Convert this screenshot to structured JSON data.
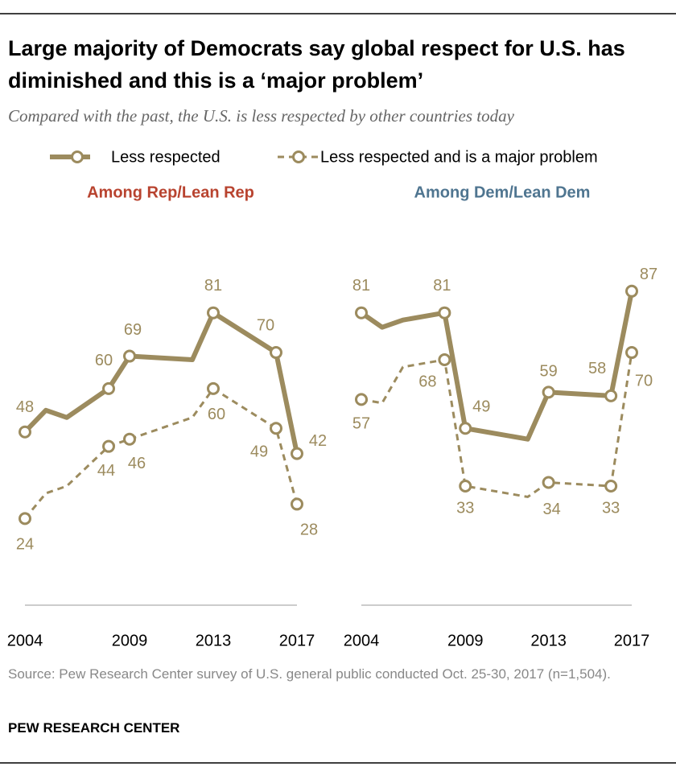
{
  "title": "Large majority of Democrats say global respect for U.S. has diminished and this is a ‘major problem’",
  "subtitle": "Compared with the past, the U.S. is less respected by other countries today",
  "source": "Source: Pew Research Center survey of U.S. general public conducted Oct. 25-30, 2017 (n=1,504).",
  "footer": "PEW RESEARCH CENTER",
  "chart_data": [
    {
      "type": "line",
      "title": "Among Rep/Lean Rep",
      "title_color": "#b8432f",
      "x": [
        2004,
        2005,
        2006,
        2008,
        2009,
        2012,
        2013,
        2016,
        2017
      ],
      "xlim": [
        2004,
        2017
      ],
      "xticks": [
        2004,
        2009,
        2013,
        2017
      ],
      "ylim": [
        0,
        100
      ],
      "series": [
        {
          "name": "Less respected",
          "color": "#9c8b5e",
          "line_style": "solid",
          "values": [
            48,
            54,
            52,
            60,
            69,
            68,
            81,
            70,
            42
          ],
          "value_labels": [
            "48",
            null,
            null,
            "60",
            "69",
            null,
            "81",
            "70",
            "42"
          ]
        },
        {
          "name": "Less respected and is a major problem",
          "color": "#9c8b5e",
          "line_style": "dashed",
          "values": [
            24,
            31,
            33,
            44,
            46,
            52,
            60,
            49,
            28
          ],
          "value_labels": [
            "24",
            null,
            null,
            "44",
            "46",
            null,
            "60",
            "49",
            "28"
          ]
        }
      ]
    },
    {
      "type": "line",
      "title": "Among Dem/Lean Dem",
      "title_color": "#4f7590",
      "x": [
        2004,
        2005,
        2006,
        2008,
        2009,
        2012,
        2013,
        2016,
        2017
      ],
      "xlim": [
        2004,
        2017
      ],
      "xticks": [
        2004,
        2009,
        2013,
        2017
      ],
      "ylim": [
        0,
        100
      ],
      "series": [
        {
          "color": "#9c8b5e",
          "line_style": "solid",
          "values": [
            81,
            77,
            79,
            81,
            49,
            46,
            59,
            58,
            87
          ],
          "value_labels": [
            "81",
            null,
            null,
            "81",
            "49",
            null,
            "59",
            "58",
            "87"
          ]
        },
        {
          "color": "#9c8b5e",
          "line_style": "dashed",
          "values": [
            57,
            56,
            66,
            68,
            33,
            30,
            34,
            33,
            70
          ],
          "value_labels": [
            "57",
            null,
            null,
            "68",
            "33",
            null,
            "34",
            "33",
            "70"
          ]
        }
      ]
    }
  ]
}
